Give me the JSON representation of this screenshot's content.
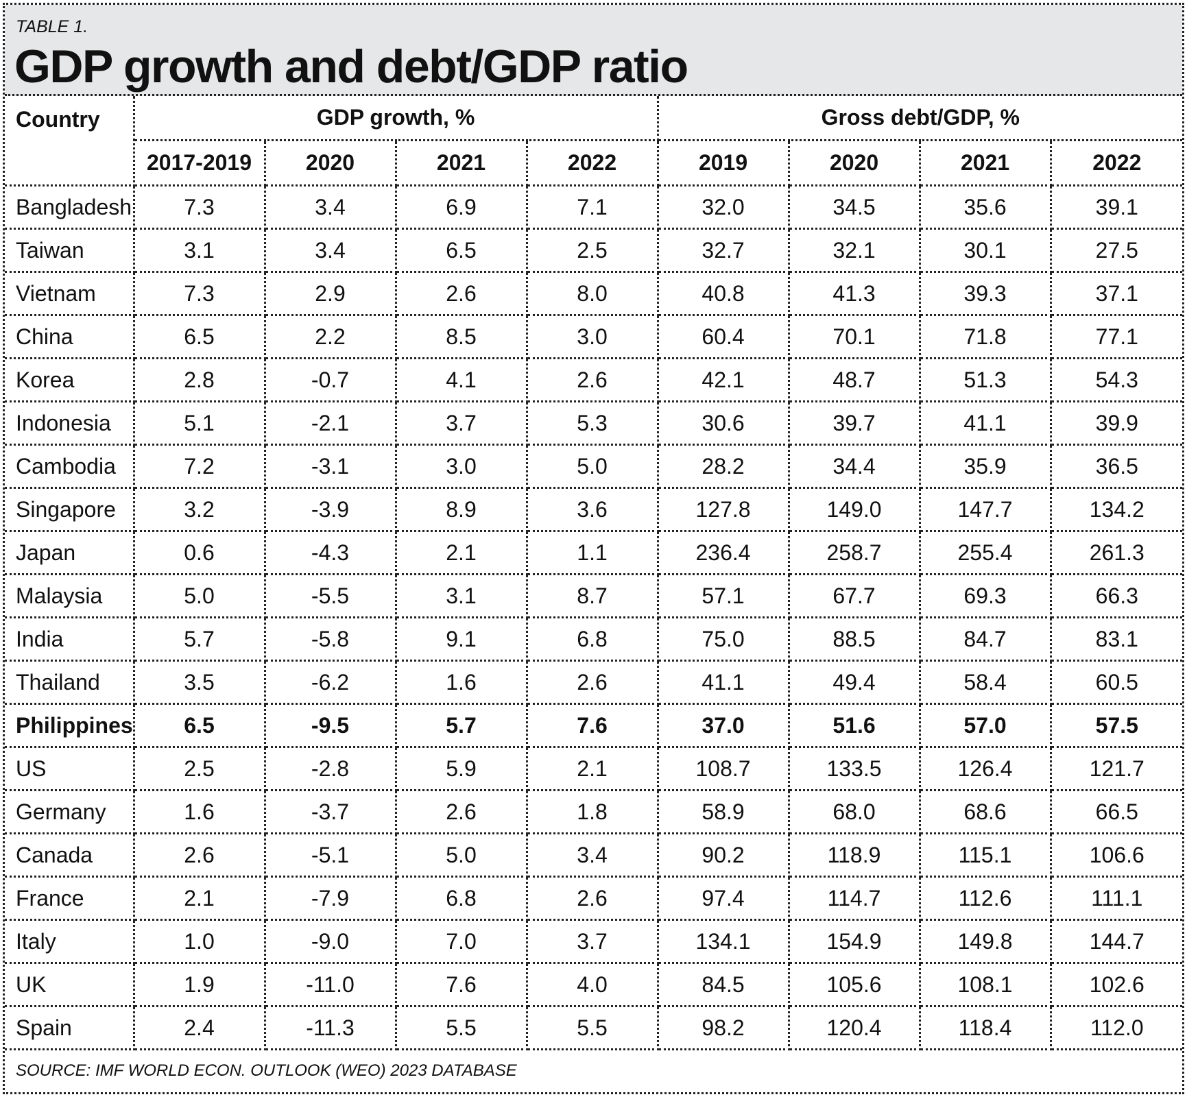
{
  "header": {
    "table_label": "TABLE 1.",
    "title": "GDP growth and debt/GDP ratio"
  },
  "source": "SOURCE: IMF WORLD ECON. OUTLOOK (WEO) 2023 DATABASE",
  "highlight_country": "Philippines",
  "chart_data": {
    "type": "table",
    "title": "GDP growth and debt/GDP ratio",
    "row_header": "Country",
    "groups": [
      {
        "name": "GDP growth, %",
        "columns": [
          "2017-2019",
          "2020",
          "2021",
          "2022"
        ]
      },
      {
        "name": "Gross debt/GDP, %",
        "columns": [
          "2019",
          "2020",
          "2021",
          "2022"
        ]
      }
    ],
    "rows": [
      {
        "country": "Bangladesh",
        "values": [
          "7.3",
          "3.4",
          "6.9",
          "7.1",
          "32.0",
          "34.5",
          "35.6",
          "39.1"
        ]
      },
      {
        "country": "Taiwan",
        "values": [
          "3.1",
          "3.4",
          "6.5",
          "2.5",
          "32.7",
          "32.1",
          "30.1",
          "27.5"
        ]
      },
      {
        "country": "Vietnam",
        "values": [
          "7.3",
          "2.9",
          "2.6",
          "8.0",
          "40.8",
          "41.3",
          "39.3",
          "37.1"
        ]
      },
      {
        "country": "China",
        "values": [
          "6.5",
          "2.2",
          "8.5",
          "3.0",
          "60.4",
          "70.1",
          "71.8",
          "77.1"
        ]
      },
      {
        "country": "Korea",
        "values": [
          "2.8",
          "-0.7",
          "4.1",
          "2.6",
          "42.1",
          "48.7",
          "51.3",
          "54.3"
        ]
      },
      {
        "country": "Indonesia",
        "values": [
          "5.1",
          "-2.1",
          "3.7",
          "5.3",
          "30.6",
          "39.7",
          "41.1",
          "39.9"
        ]
      },
      {
        "country": "Cambodia",
        "values": [
          "7.2",
          "-3.1",
          "3.0",
          "5.0",
          "28.2",
          "34.4",
          "35.9",
          "36.5"
        ]
      },
      {
        "country": "Singapore",
        "values": [
          "3.2",
          "-3.9",
          "8.9",
          "3.6",
          "127.8",
          "149.0",
          "147.7",
          "134.2"
        ]
      },
      {
        "country": "Japan",
        "values": [
          "0.6",
          "-4.3",
          "2.1",
          "1.1",
          "236.4",
          "258.7",
          "255.4",
          "261.3"
        ]
      },
      {
        "country": "Malaysia",
        "values": [
          "5.0",
          "-5.5",
          "3.1",
          "8.7",
          "57.1",
          "67.7",
          "69.3",
          "66.3"
        ]
      },
      {
        "country": "India",
        "values": [
          "5.7",
          "-5.8",
          "9.1",
          "6.8",
          "75.0",
          "88.5",
          "84.7",
          "83.1"
        ]
      },
      {
        "country": "Thailand",
        "values": [
          "3.5",
          "-6.2",
          "1.6",
          "2.6",
          "41.1",
          "49.4",
          "58.4",
          "60.5"
        ]
      },
      {
        "country": "Philippines",
        "values": [
          "6.5",
          "-9.5",
          "5.7",
          "7.6",
          "37.0",
          "51.6",
          "57.0",
          "57.5"
        ]
      },
      {
        "country": "US",
        "values": [
          "2.5",
          "-2.8",
          "5.9",
          "2.1",
          "108.7",
          "133.5",
          "126.4",
          "121.7"
        ]
      },
      {
        "country": "Germany",
        "values": [
          "1.6",
          "-3.7",
          "2.6",
          "1.8",
          "58.9",
          "68.0",
          "68.6",
          "66.5"
        ]
      },
      {
        "country": "Canada",
        "values": [
          "2.6",
          "-5.1",
          "5.0",
          "3.4",
          "90.2",
          "118.9",
          "115.1",
          "106.6"
        ]
      },
      {
        "country": "France",
        "values": [
          "2.1",
          "-7.9",
          "6.8",
          "2.6",
          "97.4",
          "114.7",
          "112.6",
          "111.1"
        ]
      },
      {
        "country": "Italy",
        "values": [
          "1.0",
          "-9.0",
          "7.0",
          "3.7",
          "134.1",
          "154.9",
          "149.8",
          "144.7"
        ]
      },
      {
        "country": "UK",
        "values": [
          "1.9",
          "-11.0",
          "7.6",
          "4.0",
          "84.5",
          "105.6",
          "108.1",
          "102.6"
        ]
      },
      {
        "country": "Spain",
        "values": [
          "2.4",
          "-11.3",
          "5.5",
          "5.5",
          "98.2",
          "120.4",
          "118.4",
          "112.0"
        ]
      }
    ]
  }
}
